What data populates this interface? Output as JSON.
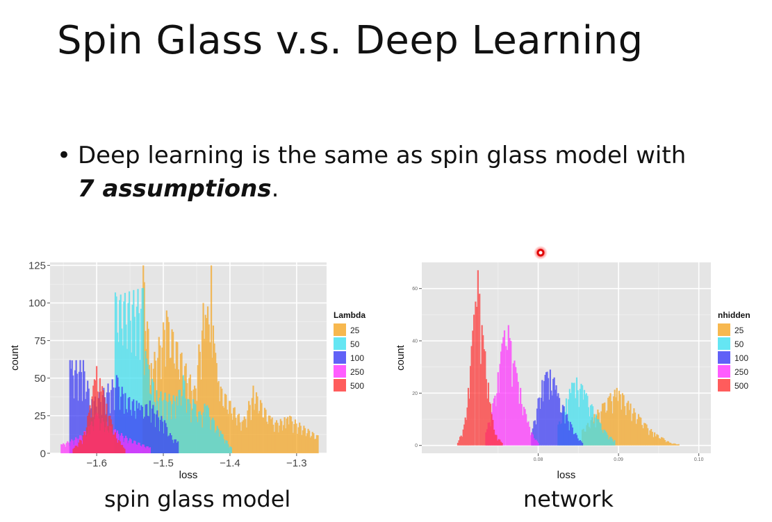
{
  "slide": {
    "title": "Spin Glass v.s. Deep Learning",
    "bullet_symbol": "•",
    "bullet_text": "Deep learning is the same as spin glass model with",
    "bullet_emphasis": "7 assumptions",
    "bullet_end": ".",
    "caption_left": "spin glass model",
    "caption_right": "network"
  },
  "colors": {
    "25": "#f5a623",
    "50": "#3fe0f0",
    "100": "#3a3af5",
    "250": "#ff33ff",
    "500": "#ff3333",
    "panel_bg": "#e5e5e5",
    "grid": "#ffffff"
  },
  "chart_data": [
    {
      "type": "histogram",
      "title": "",
      "xlabel": "loss",
      "ylabel": "count",
      "xlim": [
        -1.67,
        -1.255
      ],
      "ylim": [
        0,
        127
      ],
      "xticks": [
        -1.6,
        -1.5,
        -1.4,
        -1.3
      ],
      "xtick_labels": [
        "−1.6",
        "−1.5",
        "−1.4",
        "−1.3"
      ],
      "yticks": [
        0,
        25,
        50,
        75,
        100,
        125
      ],
      "ytick_labels": [
        "0",
        "25",
        "50",
        "75",
        "100",
        "125"
      ],
      "grid": true,
      "legend_title": "Lambda",
      "legend_position": "right",
      "series": [
        {
          "name": "25",
          "color": "#f5a623",
          "peaks": [
            [
              -1.53,
              125
            ],
            [
              -1.518,
              60
            ],
            [
              -1.495,
              95
            ],
            [
              -1.453,
              45
            ],
            [
              -1.44,
              100
            ],
            [
              -1.435,
              90
            ],
            [
              -1.428,
              125
            ],
            [
              -1.425,
              85
            ],
            [
              -1.42,
              60
            ],
            [
              -1.417,
              48
            ],
            [
              -1.38,
              22
            ],
            [
              -1.34,
              25
            ],
            [
              -1.365,
              45
            ],
            [
              -1.318,
              24
            ],
            [
              -1.33,
              22
            ],
            [
              -1.31,
              25
            ],
            [
              -1.268,
              12
            ]
          ]
        },
        {
          "name": "50",
          "color": "#3fe0f0",
          "peaks": [
            [
              -1.572,
              107
            ],
            [
              -1.53,
              110
            ],
            [
              -1.525,
              63
            ],
            [
              -1.51,
              42
            ],
            [
              -1.48,
              38
            ],
            [
              -1.47,
              52
            ],
            [
              -1.46,
              33
            ],
            [
              -1.455,
              36
            ],
            [
              -1.445,
              28
            ],
            [
              -1.438,
              33
            ],
            [
              -1.434,
              32
            ],
            [
              -1.424,
              22
            ],
            [
              -1.414,
              15
            ],
            [
              -1.398,
              4
            ]
          ]
        },
        {
          "name": "100",
          "color": "#3a3af5",
          "peaks": [
            [
              -1.64,
              62
            ],
            [
              -1.62,
              62
            ],
            [
              -1.607,
              36
            ],
            [
              -1.57,
              52
            ],
            [
              -1.557,
              40
            ],
            [
              -1.54,
              35
            ],
            [
              -1.533,
              32
            ],
            [
              -1.52,
              35
            ],
            [
              -1.498,
              22
            ],
            [
              -1.488,
              12
            ],
            [
              -1.478,
              8
            ]
          ]
        },
        {
          "name": "250",
          "color": "#ff33ff",
          "peaks": [
            [
              -1.653,
              6
            ],
            [
              -1.625,
              12
            ],
            [
              -1.612,
              18
            ],
            [
              -1.6,
              27
            ],
            [
              -1.585,
              21
            ],
            [
              -1.572,
              16
            ],
            [
              -1.55,
              10
            ],
            [
              -1.52,
              4
            ]
          ]
        },
        {
          "name": "500",
          "color": "#ff3333",
          "peaks": [
            [
              -1.635,
              3
            ],
            [
              -1.62,
              12
            ],
            [
              -1.61,
              32
            ],
            [
              -1.605,
              45
            ],
            [
              -1.6,
              58
            ],
            [
              -1.595,
              50
            ],
            [
              -1.59,
              42
            ],
            [
              -1.585,
              33
            ],
            [
              -1.58,
              25
            ],
            [
              -1.572,
              14
            ],
            [
              -1.565,
              8
            ],
            [
              -1.558,
              3
            ]
          ]
        }
      ]
    },
    {
      "type": "histogram",
      "title": "",
      "xlabel": "loss",
      "ylabel": "count",
      "xlim": [
        0.0655,
        0.1015
      ],
      "ylim": [
        -3,
        70
      ],
      "xticks": [
        0.08,
        0.09,
        0.1
      ],
      "xtick_labels": [
        "0.08",
        "0.09",
        "0.10"
      ],
      "yticks": [
        0,
        20,
        40,
        60
      ],
      "ytick_labels": [
        "0",
        "20",
        "40",
        "60"
      ],
      "grid": true,
      "legend_title": "nhidden",
      "legend_position": "right",
      "series": [
        {
          "name": "25",
          "color": "#f5a623",
          "peaks": [
            [
              0.0855,
              6
            ],
            [
              0.087,
              12
            ],
            [
              0.088,
              16
            ],
            [
              0.089,
              20
            ],
            [
              0.0898,
              22
            ],
            [
              0.0905,
              20
            ],
            [
              0.0915,
              16
            ],
            [
              0.0925,
              12
            ],
            [
              0.0935,
              8
            ],
            [
              0.0945,
              5
            ],
            [
              0.0955,
              3
            ],
            [
              0.0965,
              1
            ],
            [
              0.0975,
              0.5
            ]
          ]
        },
        {
          "name": "50",
          "color": "#3fe0f0",
          "peaks": [
            [
              0.0825,
              8
            ],
            [
              0.0835,
              18
            ],
            [
              0.0842,
              24
            ],
            [
              0.0848,
              26
            ],
            [
              0.0855,
              23
            ],
            [
              0.086,
              20
            ],
            [
              0.0868,
              15
            ],
            [
              0.0875,
              10
            ],
            [
              0.0885,
              5
            ],
            [
              0.0895,
              2
            ]
          ]
        },
        {
          "name": "100",
          "color": "#3a3af5",
          "peaks": [
            [
              0.0792,
              5
            ],
            [
              0.08,
              18
            ],
            [
              0.0805,
              25
            ],
            [
              0.081,
              28
            ],
            [
              0.0815,
              29
            ],
            [
              0.082,
              26
            ],
            [
              0.0825,
              20
            ],
            [
              0.0832,
              15
            ],
            [
              0.084,
              9
            ],
            [
              0.0848,
              4
            ],
            [
              0.0855,
              1
            ]
          ]
        },
        {
          "name": "250",
          "color": "#ff33ff",
          "peaks": [
            [
              0.0735,
              5
            ],
            [
              0.0745,
              18
            ],
            [
              0.075,
              28
            ],
            [
              0.0755,
              39
            ],
            [
              0.0758,
              44
            ],
            [
              0.076,
              38
            ],
            [
              0.0763,
              46
            ],
            [
              0.0766,
              40
            ],
            [
              0.0772,
              30
            ],
            [
              0.0778,
              22
            ],
            [
              0.0785,
              12
            ],
            [
              0.0792,
              5
            ],
            [
              0.08,
              1
            ]
          ]
        },
        {
          "name": "500",
          "color": "#ff3333",
          "peaks": [
            [
              0.07,
              1
            ],
            [
              0.0708,
              8
            ],
            [
              0.0713,
              22
            ],
            [
              0.0717,
              38
            ],
            [
              0.072,
              50
            ],
            [
              0.0722,
              55
            ],
            [
              0.0725,
              67
            ],
            [
              0.0727,
              58
            ],
            [
              0.073,
              46
            ],
            [
              0.0734,
              36
            ],
            [
              0.0738,
              24
            ],
            [
              0.0742,
              12
            ],
            [
              0.0748,
              4
            ],
            [
              0.0755,
              1
            ]
          ]
        }
      ]
    }
  ]
}
